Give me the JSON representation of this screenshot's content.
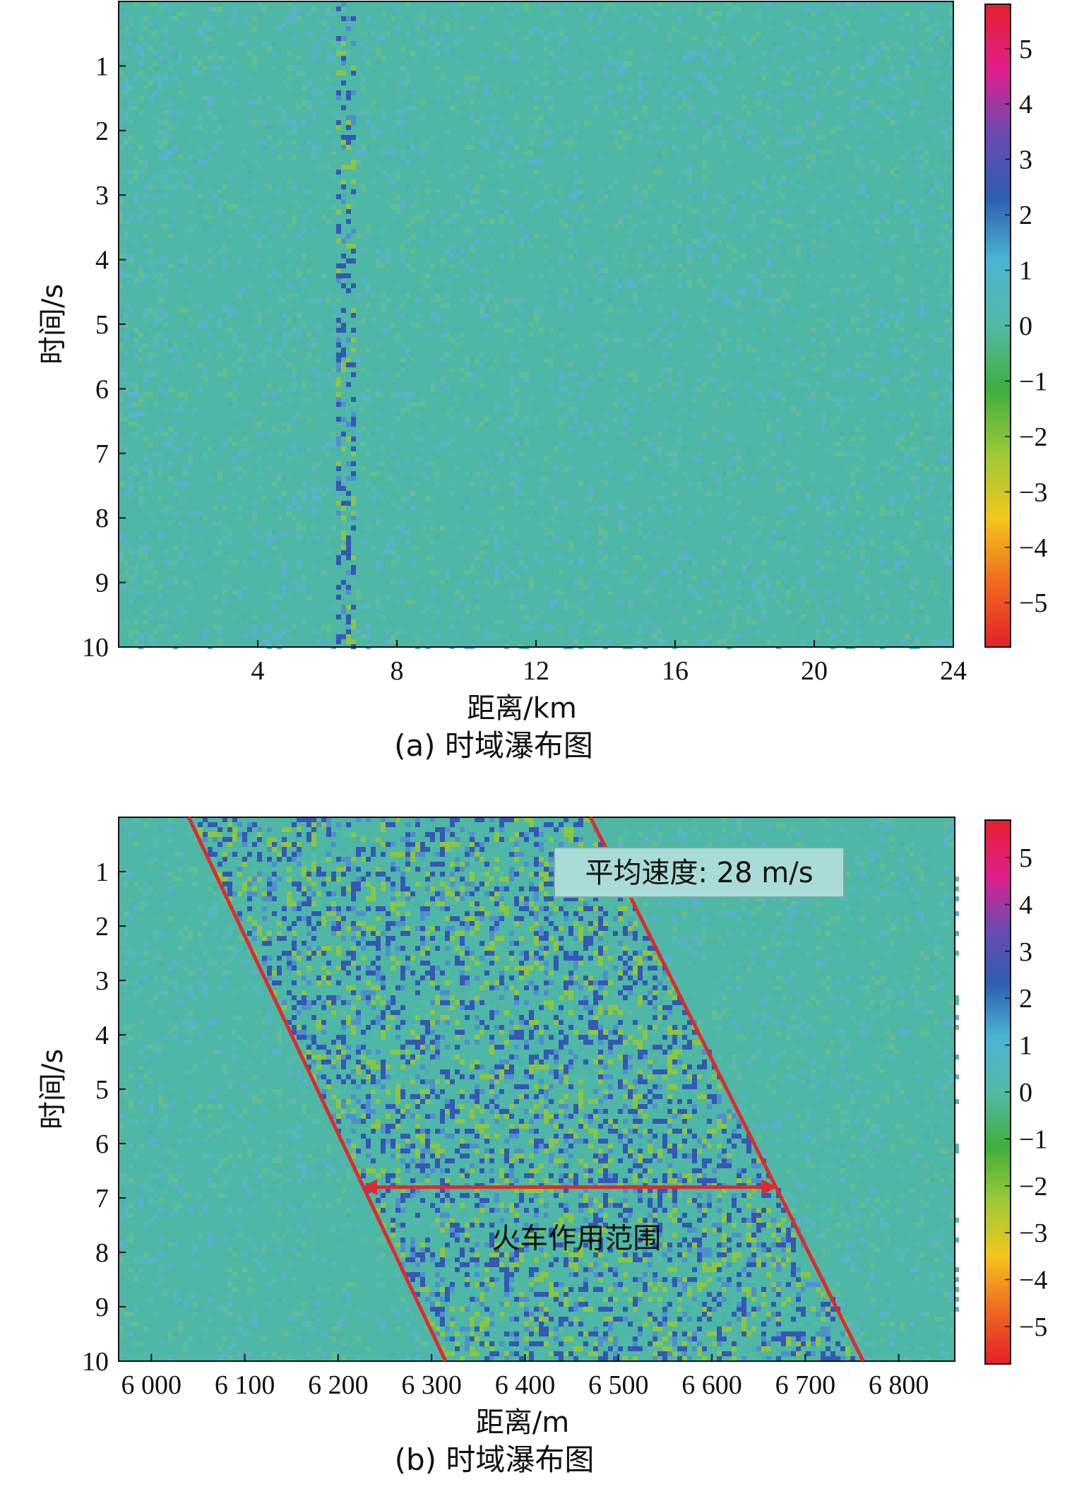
{
  "palette": {
    "background": "#4eb7a6",
    "annotation_line": "#e02a2a",
    "annotation_box_fill": "#a9dcd6",
    "annotation_box_stroke": "#7fa9a4",
    "axis": "#111111",
    "colorbar_stops": [
      "#e4202b",
      "#ef6a1e",
      "#f2c61d",
      "#9cc936",
      "#3fae3c",
      "#54b8a6",
      "#4ab5d3",
      "#2e5eb0",
      "#6b4bb2",
      "#e21e8b",
      "#e4202b"
    ]
  },
  "chart_data": [
    {
      "id": "a",
      "type": "heatmap",
      "caption": "(a) 时域瀑布图",
      "xlabel": "距离/km",
      "ylabel": "时间/s",
      "xlim": [
        0,
        24
      ],
      "ylim": [
        0,
        10
      ],
      "y_inverted": true,
      "xticks": [
        4,
        8,
        12,
        16,
        20,
        24
      ],
      "xtick_labels": [
        "4",
        "8",
        "12",
        "16",
        "20",
        "24"
      ],
      "yticks": [
        1,
        2,
        3,
        4,
        5,
        6,
        7,
        8,
        9,
        10
      ],
      "ytick_labels": [
        "1",
        "2",
        "3",
        "4",
        "5",
        "6",
        "7",
        "8",
        "9",
        "10"
      ],
      "colorbar": {
        "range": [
          -5.8,
          5.8
        ],
        "ticks": [
          5,
          4,
          3,
          2,
          1,
          0,
          -1,
          -2,
          -3,
          -4,
          -5
        ],
        "tick_labels": [
          "5",
          "4",
          "3",
          "2",
          "1",
          "0",
          "−1",
          "−2",
          "−3",
          "−4",
          "−5"
        ]
      },
      "features": [
        {
          "kind": "vertical_stripe",
          "x_start": 6.2,
          "x_end": 6.7,
          "intensity": 0.75
        }
      ]
    },
    {
      "id": "b",
      "type": "heatmap",
      "caption": "(b) 时域瀑布图",
      "xlabel": "距离/m",
      "ylabel": "时间/s",
      "xlim": [
        5965,
        6860
      ],
      "ylim": [
        0,
        10
      ],
      "y_inverted": true,
      "xticks": [
        6000,
        6100,
        6200,
        6300,
        6400,
        6500,
        6600,
        6700,
        6800
      ],
      "xtick_labels": [
        "6 000",
        "6 100",
        "6 200",
        "6 300",
        "6 400",
        "6 500",
        "6 600",
        "6 700",
        "6 800"
      ],
      "yticks": [
        1,
        2,
        3,
        4,
        5,
        6,
        7,
        8,
        9,
        10
      ],
      "ytick_labels": [
        "1",
        "2",
        "3",
        "4",
        "5",
        "6",
        "7",
        "8",
        "9",
        "10"
      ],
      "colorbar": {
        "range": [
          -5.8,
          5.8
        ],
        "ticks": [
          5,
          4,
          3,
          2,
          1,
          0,
          -1,
          -2,
          -3,
          -4,
          -5
        ],
        "tick_labels": [
          "5",
          "4",
          "3",
          "2",
          "1",
          "0",
          "−1",
          "−2",
          "−3",
          "−4",
          "−5"
        ]
      },
      "annotations": {
        "speed_box": "平均速度: 28 m/s",
        "range_label": "火车作用范围",
        "boundary_lines": [
          {
            "x0": 6040,
            "t0": 0,
            "x1": 6315,
            "t1": 10
          },
          {
            "x0": 6470,
            "t0": 0,
            "x1": 6762,
            "t1": 10
          }
        ],
        "range_arrow": {
          "t": 6.8,
          "x_from": 6225,
          "x_to": 6670
        }
      }
    }
  ]
}
